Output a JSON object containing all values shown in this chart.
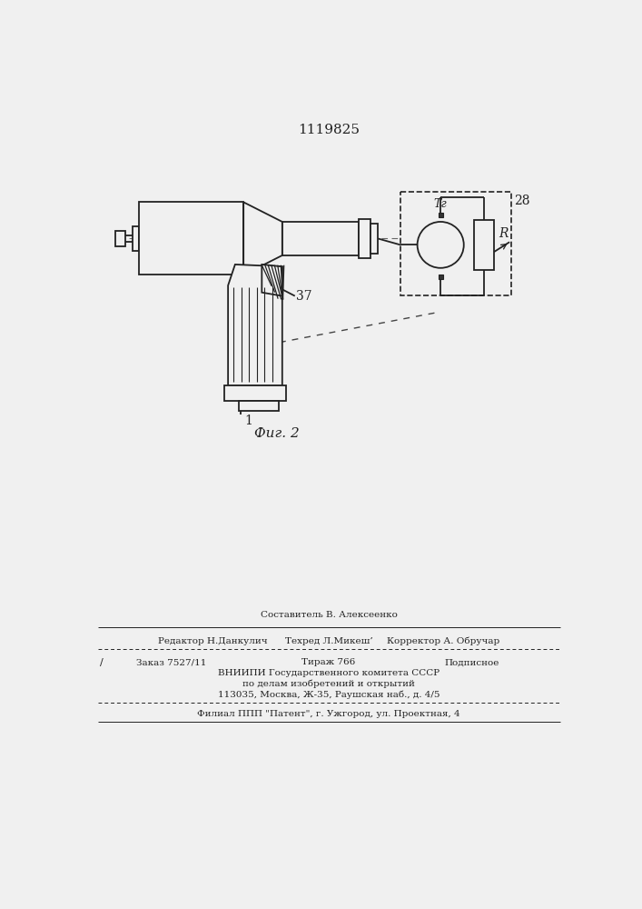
{
  "title": "1119825",
  "fig_label": "Фиг. 2",
  "label_37": "37",
  "label_1": "1",
  "label_28": "28",
  "label_Tr": "Tг",
  "label_R": "R",
  "bg_color": "#f0f0f0",
  "line_color": "#222222",
  "footer_line0": "Составитель В. Алексеенко",
  "footer_line1a": "Редактор Н.Данкулич",
  "footer_line1b": "Техред Л.Микеш’",
  "footer_line1c": "Корректор А. Обручар",
  "footer_line2a": "Заказ 7527/11",
  "footer_line2b": "Тираж 766",
  "footer_line2c": "Подписное",
  "footer_line3": "ВНИИПИ Государственного комитета СССР",
  "footer_line4": "по делам изобретений и открытий",
  "footer_line5": "113035, Москва, Ж-35, Раушская наб., д. 4/5",
  "footer_line6": "Филиал ППП \"Патент\", г. Ужгород, ул. Проектная, 4"
}
